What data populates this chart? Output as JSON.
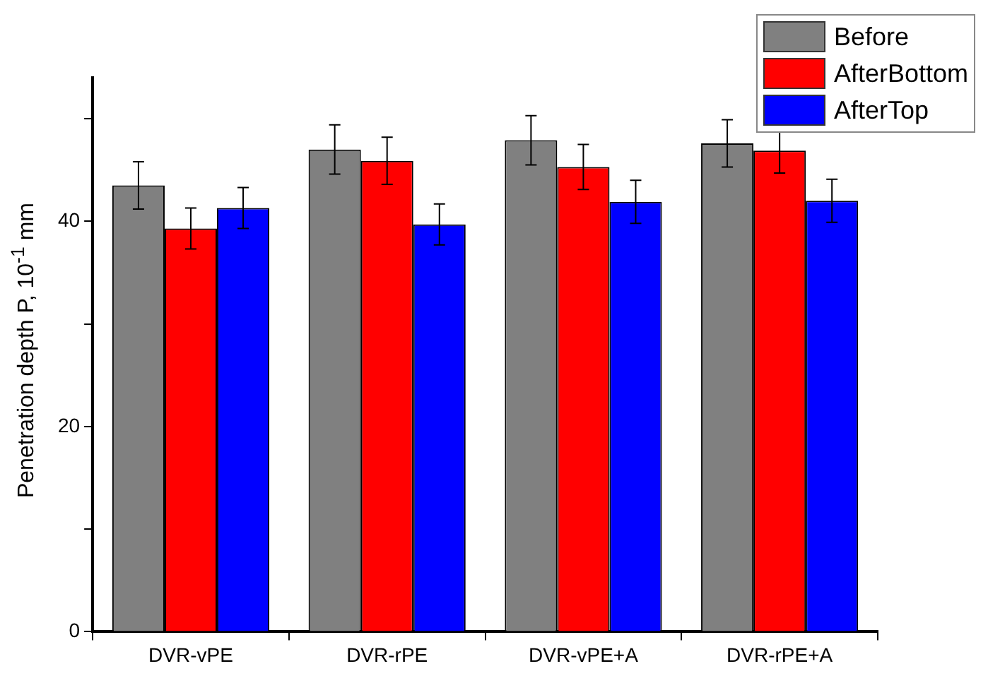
{
  "chart_data": {
    "type": "bar",
    "ylabel": "Penetration depth P, 10$^{-1}$ mm",
    "categories": [
      "DVR-vPE",
      "DVR-rPE",
      "DVR-vPE+A",
      "DVR-rPE+A"
    ],
    "series": [
      {
        "name": "Before",
        "color": "#808080",
        "values": [
          43.5,
          47.0,
          47.9,
          47.6
        ],
        "errors": [
          2.3,
          2.4,
          2.4,
          2.3
        ]
      },
      {
        "name": "AfterBottom",
        "color": "#ff0000",
        "values": [
          39.3,
          45.9,
          45.3,
          46.9
        ],
        "errors": [
          2.0,
          2.3,
          2.2,
          2.2
        ]
      },
      {
        "name": "AfterTop",
        "color": "#0000ff",
        "values": [
          41.3,
          39.7,
          41.9,
          42.0
        ],
        "errors": [
          2.0,
          2.0,
          2.1,
          2.1
        ]
      }
    ],
    "ylim": [
      0,
      54
    ],
    "yticks": [
      0,
      {
        "value": 10,
        "label": null
      },
      20,
      {
        "value": 30,
        "label": null
      },
      40,
      {
        "value": 50,
        "label": null
      }
    ],
    "grid": false,
    "legend": "top right"
  }
}
